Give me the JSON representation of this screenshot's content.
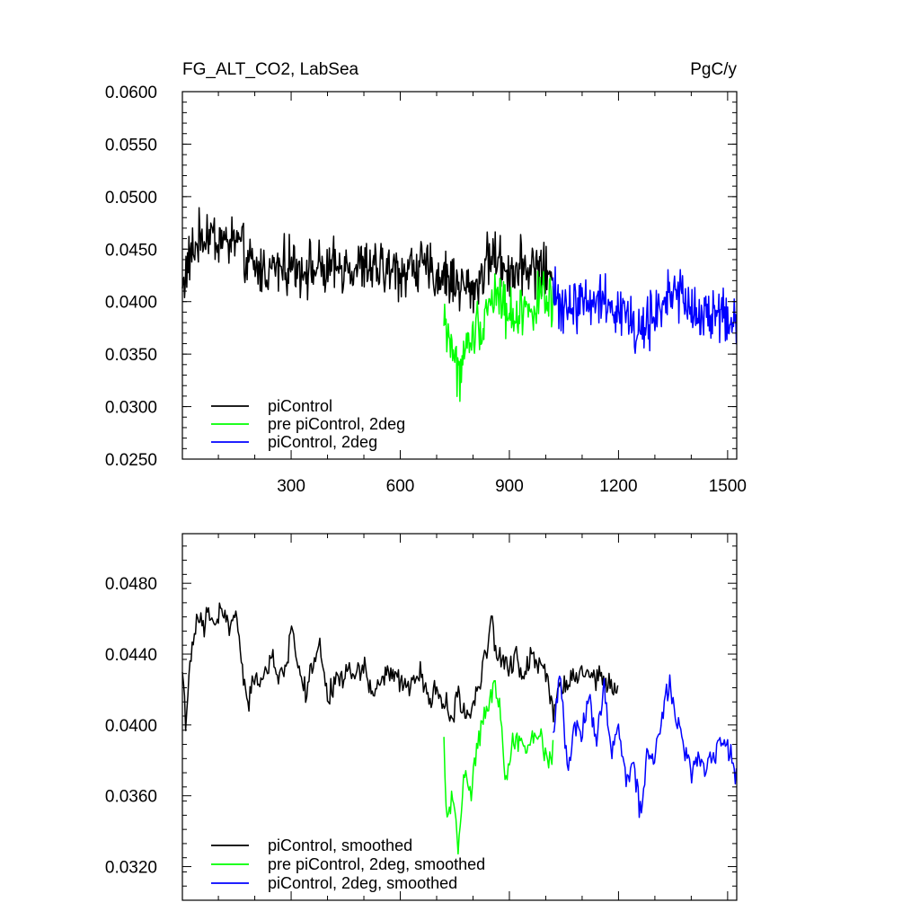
{
  "figure": {
    "title_left": "FG_ALT_CO2, LabSea",
    "title_right": "PgC/y"
  },
  "colors": {
    "piControl": "#000000",
    "pre_piControl_2deg": "#00ff00",
    "piControl_2deg": "#0000ff",
    "axis": "#000000"
  },
  "chart_data": [
    {
      "type": "line",
      "title": "FG_ALT_CO2, LabSea",
      "units": "PgC/y",
      "xlabel": "",
      "ylabel": "",
      "xlim": [
        1,
        1525
      ],
      "ylim": [
        0.025,
        0.06
      ],
      "x_ticks": [
        300,
        600,
        900,
        1200,
        1500
      ],
      "x_tick_labels": [
        "300",
        "600",
        "900",
        "1200",
        "1500"
      ],
      "y_ticks": [
        0.025,
        0.03,
        0.035,
        0.04,
        0.045,
        0.05,
        0.055,
        0.06
      ],
      "y_tick_labels": [
        "0.0250",
        "0.0300",
        "0.0350",
        "0.0400",
        "0.0450",
        "0.0500",
        "0.0550",
        "0.0600"
      ],
      "grid": false,
      "legend_position": "bottom-left",
      "series": [
        {
          "name": "piControl",
          "color": "#000000",
          "x": [
            1,
            25,
            50,
            75,
            100,
            125,
            150,
            175,
            200,
            250,
            300,
            350,
            400,
            450,
            500,
            550,
            600,
            650,
            700,
            750,
            800,
            850,
            900,
            950,
            1000,
            1020
          ],
          "y": [
            0.0415,
            0.0445,
            0.046,
            0.0465,
            0.046,
            0.0455,
            0.046,
            0.044,
            0.043,
            0.0432,
            0.0435,
            0.0432,
            0.0428,
            0.0435,
            0.0432,
            0.043,
            0.0428,
            0.0435,
            0.0425,
            0.042,
            0.041,
            0.0445,
            0.043,
            0.0435,
            0.043,
            0.041
          ]
        },
        {
          "name": "pre piControl, 2deg",
          "color": "#00ff00",
          "x": [
            720,
            740,
            760,
            780,
            800,
            820,
            840,
            860,
            880,
            900,
            920,
            940,
            960,
            980,
            1000,
            1020
          ],
          "y": [
            0.0385,
            0.036,
            0.033,
            0.035,
            0.037,
            0.038,
            0.0395,
            0.041,
            0.04,
            0.0385,
            0.039,
            0.0395,
            0.039,
            0.0405,
            0.04,
            0.0395
          ]
        },
        {
          "name": "piControl, 2deg",
          "color": "#0000ff",
          "x": [
            1020,
            1050,
            1100,
            1150,
            1200,
            1250,
            1300,
            1350,
            1400,
            1450,
            1500,
            1525
          ],
          "y": [
            0.0405,
            0.0395,
            0.04,
            0.0405,
            0.0395,
            0.037,
            0.0385,
            0.0415,
            0.039,
            0.0385,
            0.0385,
            0.0375
          ]
        }
      ]
    },
    {
      "type": "line",
      "title": "",
      "xlabel": "",
      "ylabel": "",
      "xlim": [
        1,
        1525
      ],
      "ylim": [
        0.0301,
        0.0508
      ],
      "x_ticks": [
        300,
        600,
        900,
        1200,
        1500
      ],
      "x_tick_labels": [
        "",
        "",
        "",
        "",
        ""
      ],
      "y_ticks": [
        0.032,
        0.036,
        0.04,
        0.044,
        0.048
      ],
      "y_tick_labels": [
        "0.0320",
        "0.0360",
        "0.0400",
        "0.0440",
        "0.0480"
      ],
      "grid": false,
      "legend_position": "bottom-left",
      "series": [
        {
          "name": "piControl, smoothed",
          "color": "#000000",
          "x": [
            1,
            10,
            25,
            40,
            60,
            75,
            90,
            110,
            130,
            150,
            170,
            180,
            200,
            220,
            250,
            280,
            300,
            320,
            340,
            360,
            380,
            400,
            420,
            450,
            480,
            500,
            520,
            550,
            580,
            600,
            620,
            650,
            680,
            700,
            720,
            740,
            760,
            780,
            800,
            820,
            840,
            850,
            860,
            880,
            900,
            920,
            940,
            960,
            980,
            1000,
            1020,
            1050,
            1100,
            1150,
            1200
          ],
          "y": [
            0.0432,
            0.0405,
            0.0435,
            0.046,
            0.0455,
            0.0462,
            0.0458,
            0.0465,
            0.0455,
            0.0462,
            0.0425,
            0.041,
            0.0425,
            0.0428,
            0.0435,
            0.0425,
            0.0455,
            0.0435,
            0.0418,
            0.0432,
            0.0445,
            0.0412,
            0.0425,
            0.043,
            0.0428,
            0.0435,
            0.0418,
            0.0425,
            0.043,
            0.0422,
            0.042,
            0.043,
            0.0415,
            0.042,
            0.0412,
            0.0405,
            0.0415,
            0.0405,
            0.0412,
            0.0425,
            0.0445,
            0.0465,
            0.0442,
            0.0435,
            0.0432,
            0.0438,
            0.0425,
            0.0442,
            0.0435,
            0.0432,
            0.041,
            0.0425,
            0.043,
            0.0425,
            0.042
          ]
        },
        {
          "name": "pre piControl, 2deg, smoothed",
          "color": "#00ff00",
          "x": [
            720,
            730,
            745,
            760,
            775,
            790,
            810,
            830,
            850,
            860,
            875,
            890,
            910,
            930,
            950,
            970,
            990,
            1010,
            1020
          ],
          "y": [
            0.0388,
            0.0345,
            0.0365,
            0.0328,
            0.0375,
            0.0355,
            0.0388,
            0.0405,
            0.0412,
            0.0428,
            0.0405,
            0.0368,
            0.0395,
            0.0392,
            0.0385,
            0.0398,
            0.0392,
            0.0378,
            0.0385
          ]
        },
        {
          "name": "piControl, 2deg, smoothed",
          "color": "#0000ff",
          "x": [
            1020,
            1040,
            1060,
            1080,
            1100,
            1120,
            1140,
            1160,
            1180,
            1200,
            1220,
            1240,
            1260,
            1280,
            1300,
            1320,
            1340,
            1360,
            1380,
            1400,
            1420,
            1440,
            1460,
            1480,
            1500,
            1525
          ],
          "y": [
            0.0392,
            0.043,
            0.0375,
            0.0402,
            0.0395,
            0.0418,
            0.0388,
            0.0425,
            0.0385,
            0.0402,
            0.0372,
            0.0378,
            0.0352,
            0.0385,
            0.0378,
            0.0405,
            0.0425,
            0.0402,
            0.039,
            0.0372,
            0.0385,
            0.0378,
            0.0382,
            0.0392,
            0.0388,
            0.0372
          ]
        }
      ]
    }
  ]
}
